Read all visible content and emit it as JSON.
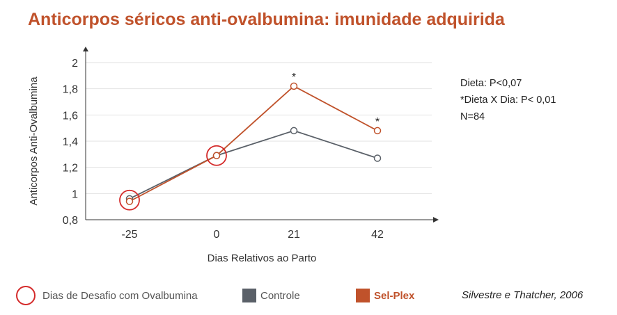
{
  "title": "Anticorpos séricos anti-ovalbumina: imunidade adquirida",
  "stats": [
    "Dieta:  P<0,07",
    "*Dieta X Dia: P< 0,01",
    "N=84"
  ],
  "legend": {
    "challenge": "Dias de Desafio com Ovalbumina",
    "control": "Controle",
    "selplex": "Sel-Plex"
  },
  "source": "Silvestre e Thatcher, 2006",
  "colors": {
    "title": "#c0522b",
    "control": "#5a6068",
    "selplex": "#c0522b",
    "challenge_ring": "#d42a2a"
  },
  "chart_data": {
    "type": "line",
    "title": "Anticorpos séricos anti-ovalbumina: imunidade adquirida",
    "xlabel": "Dias Relativos ao Parto",
    "ylabel": "Anticorpos Anti-Ovalbumina",
    "categories": [
      "-25",
      "0",
      "21",
      "42"
    ],
    "ylim": [
      0.8,
      2.0
    ],
    "yticks": [
      "0,8",
      "1",
      "1,2",
      "1,4",
      "1,6",
      "1,8",
      "2"
    ],
    "grid": true,
    "series": [
      {
        "name": "Controle",
        "values": [
          0.96,
          1.29,
          1.48,
          1.27
        ]
      },
      {
        "name": "Sel-Plex",
        "values": [
          0.94,
          1.29,
          1.82,
          1.48
        ]
      }
    ],
    "significance": [
      "",
      "",
      "*",
      "*"
    ],
    "challenge_days": [
      "-25",
      "0"
    ]
  }
}
